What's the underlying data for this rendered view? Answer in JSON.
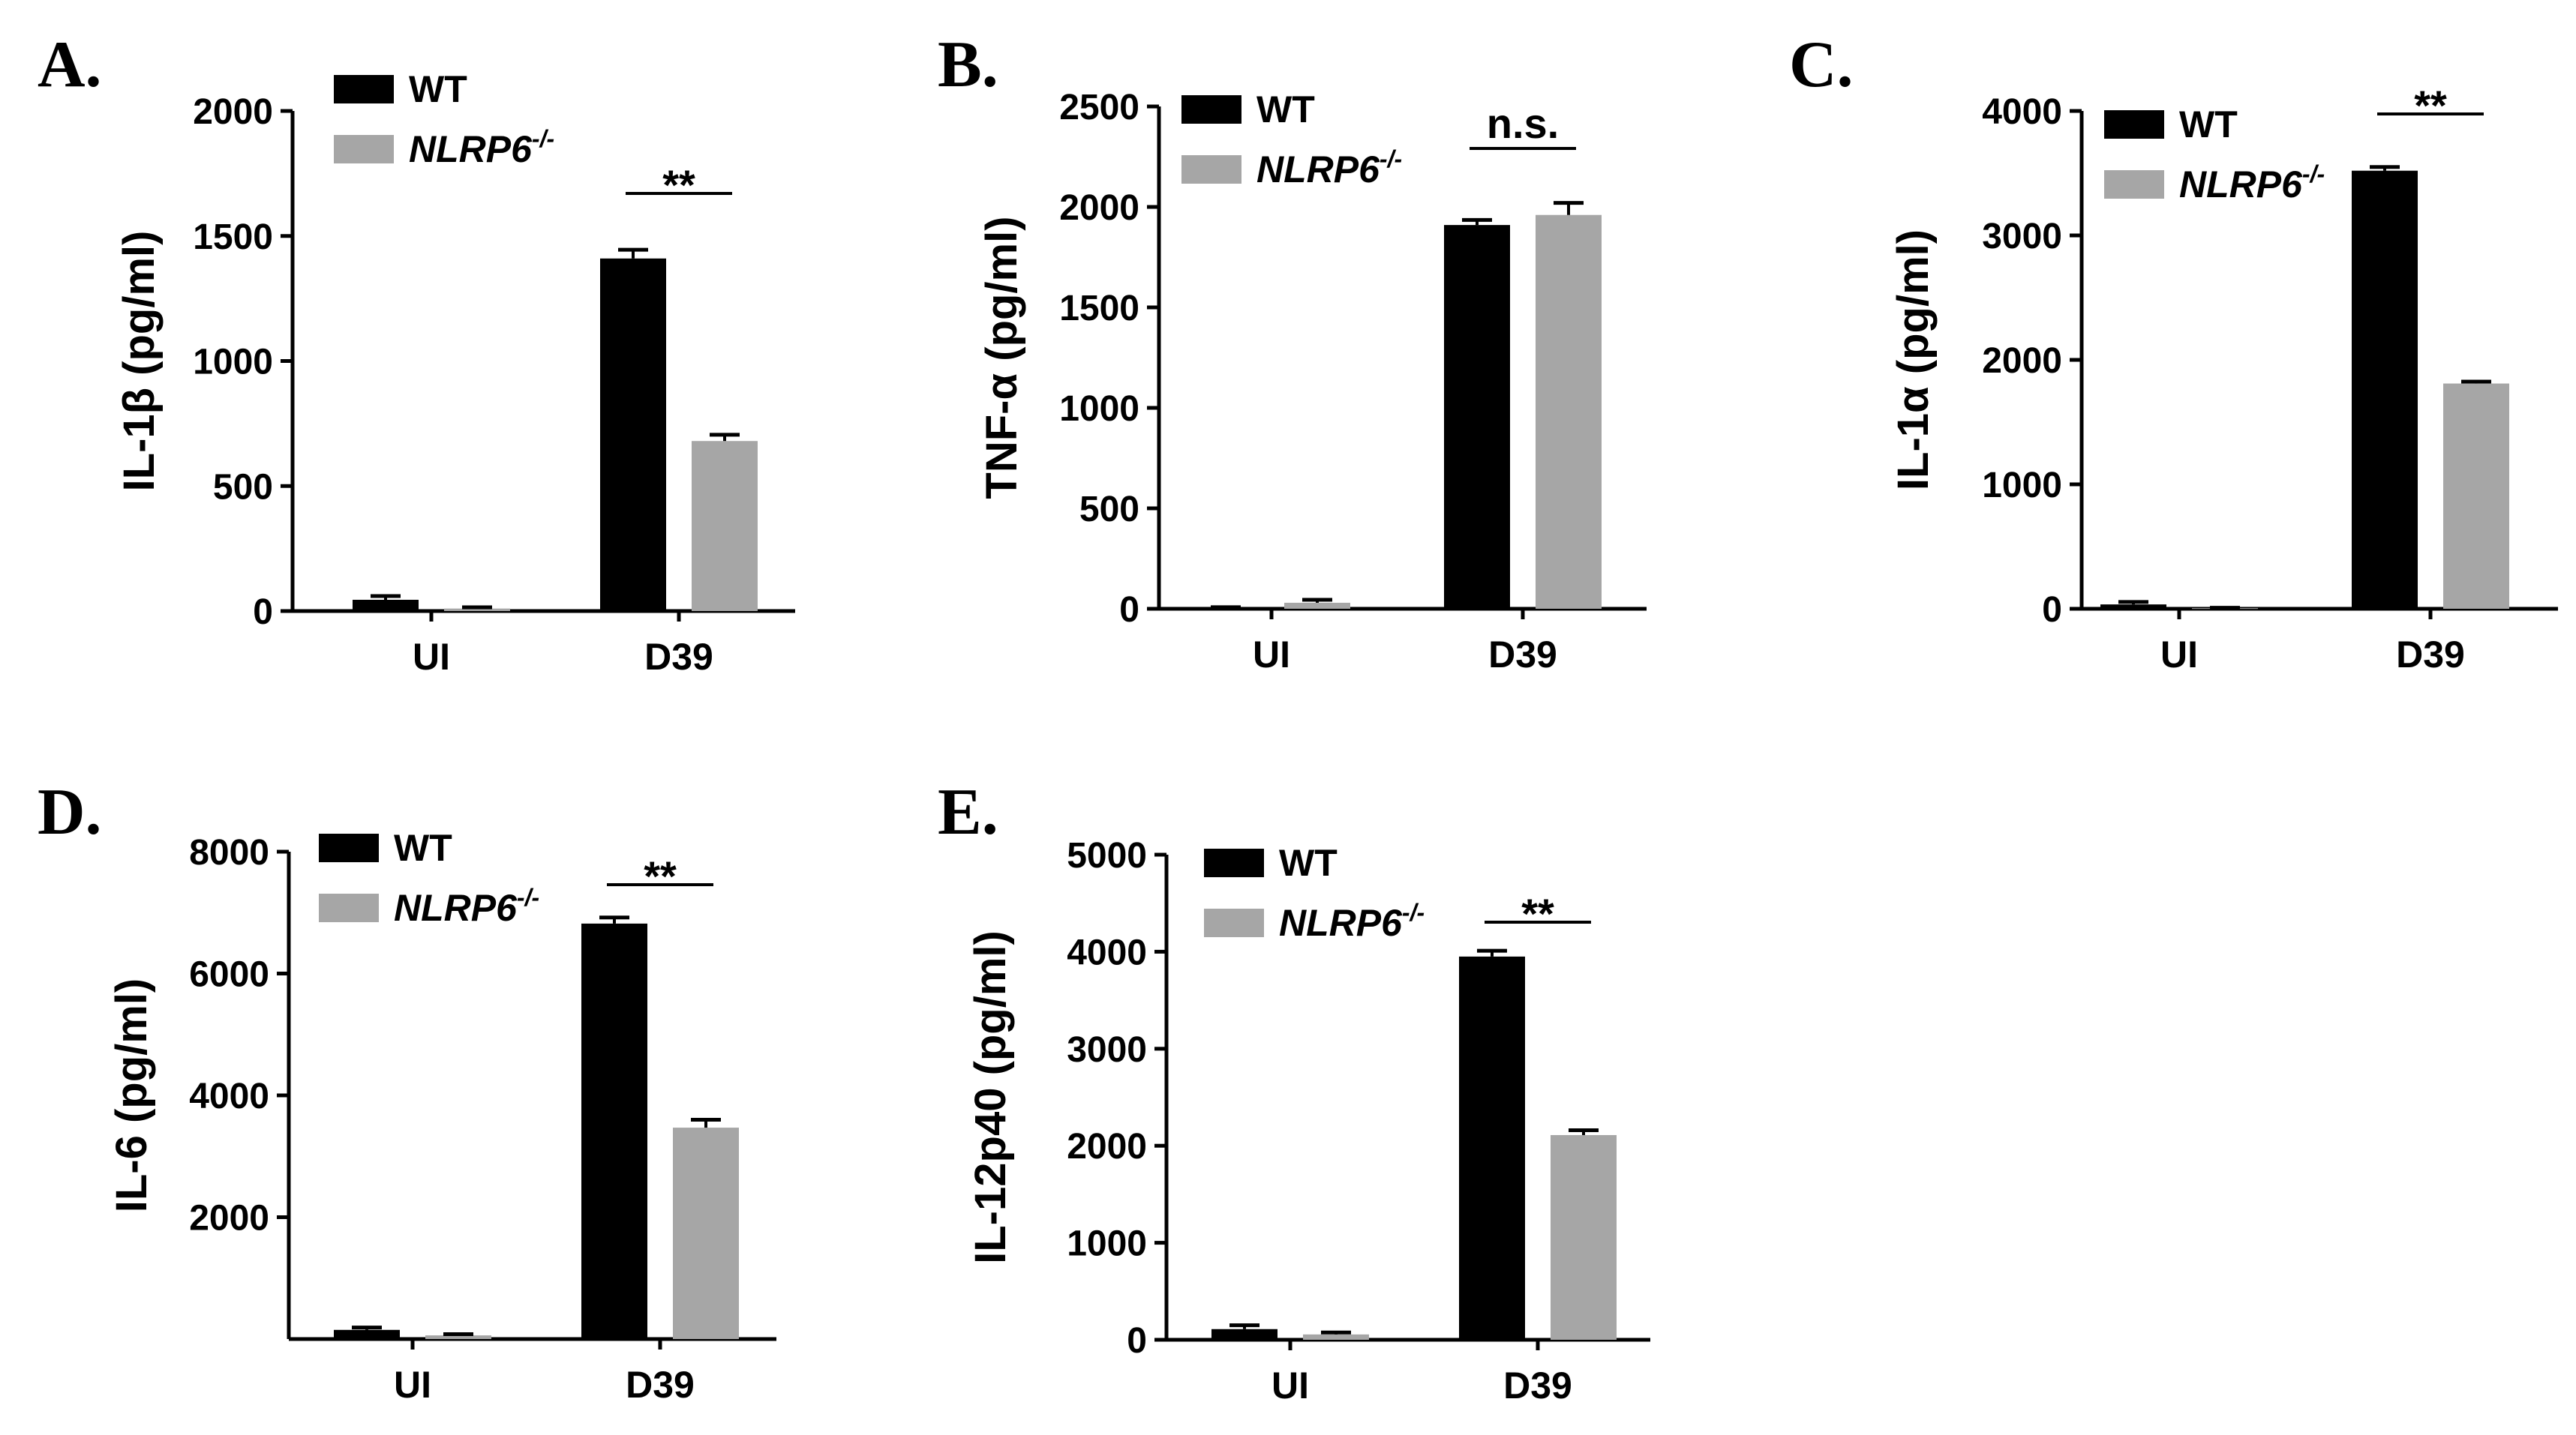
{
  "colors": {
    "WT": "#000000",
    "NLRP6": "#a6a6a6"
  },
  "chart_data": [
    {
      "panel": "A.",
      "type": "bar",
      "ylabel": "IL-1β (pg/ml)",
      "categories": [
        "UI",
        "D39"
      ],
      "ylim": [
        0,
        2000
      ],
      "yticks": [
        "0",
        "500",
        "1000",
        "1500",
        "2000"
      ],
      "yticks_values": [
        0,
        500,
        1000,
        1500,
        2000
      ],
      "series": [
        {
          "name": "WT",
          "values": [
            45,
            1410
          ],
          "errors": [
            15,
            35
          ]
        },
        {
          "name": "NLRP6",
          "values": [
            10,
            680
          ],
          "errors": [
            5,
            25
          ]
        }
      ],
      "legend": {
        "wt": "WT",
        "ko_base": "NLRP6",
        "ko_sup": "-/-"
      },
      "significance": [
        {
          "category": "D39",
          "label": "**"
        }
      ]
    },
    {
      "panel": "B.",
      "type": "bar",
      "ylabel": "TNF-α (pg/ml)",
      "categories": [
        "UI",
        "D39"
      ],
      "ylim": [
        0,
        2500
      ],
      "yticks": [
        "0",
        "500",
        "1000",
        "1500",
        "2000",
        "2500"
      ],
      "yticks_values": [
        0,
        500,
        1000,
        1500,
        2000,
        2500
      ],
      "series": [
        {
          "name": "WT",
          "values": [
            5,
            1910
          ],
          "errors": [
            3,
            25
          ]
        },
        {
          "name": "NLRP6",
          "values": [
            30,
            1960
          ],
          "errors": [
            15,
            60
          ]
        }
      ],
      "legend": {
        "wt": "WT",
        "ko_base": "NLRP6",
        "ko_sup": "-/-"
      },
      "significance": [
        {
          "category": "D39",
          "label": "n.s."
        }
      ]
    },
    {
      "panel": "C.",
      "type": "bar",
      "ylabel": "IL-1α (pg/ml)",
      "categories": [
        "UI",
        "D39"
      ],
      "ylim": [
        0,
        4000
      ],
      "yticks": [
        "0",
        "1000",
        "2000",
        "3000",
        "4000"
      ],
      "yticks_values": [
        0,
        1000,
        2000,
        3000,
        4000
      ],
      "series": [
        {
          "name": "WT",
          "values": [
            35,
            3520
          ],
          "errors": [
            20,
            30
          ]
        },
        {
          "name": "NLRP6",
          "values": [
            5,
            1810
          ],
          "errors": [
            3,
            15
          ]
        }
      ],
      "legend": {
        "wt": "WT",
        "ko_base": "NLRP6",
        "ko_sup": "-/-"
      },
      "significance": [
        {
          "category": "D39",
          "label": "**"
        }
      ]
    },
    {
      "panel": "D.",
      "type": "bar",
      "ylabel": "IL-6 (pg/ml)",
      "categories": [
        "UI",
        "D39"
      ],
      "ylim": [
        0,
        8000
      ],
      "yticks": [
        "2000",
        "4000",
        "6000",
        "8000"
      ],
      "yticks_values": [
        2000,
        4000,
        6000,
        8000
      ],
      "series": [
        {
          "name": "WT",
          "values": [
            150,
            6820
          ],
          "errors": [
            40,
            100
          ]
        },
        {
          "name": "NLRP6",
          "values": [
            60,
            3470
          ],
          "errors": [
            20,
            130
          ]
        }
      ],
      "legend": {
        "wt": "WT",
        "ko_base": "NLRP6",
        "ko_sup": "-/-"
      },
      "significance": [
        {
          "category": "D39",
          "label": "**"
        }
      ]
    },
    {
      "panel": "E.",
      "type": "bar",
      "ylabel": "IL-12p40 (pg/ml)",
      "categories": [
        "UI",
        "D39"
      ],
      "ylim": [
        0,
        5000
      ],
      "yticks": [
        "0",
        "1000",
        "2000",
        "3000",
        "4000",
        "5000"
      ],
      "yticks_values": [
        0,
        1000,
        2000,
        3000,
        4000,
        5000
      ],
      "series": [
        {
          "name": "WT",
          "values": [
            110,
            3950
          ],
          "errors": [
            40,
            60
          ]
        },
        {
          "name": "NLRP6",
          "values": [
            55,
            2110
          ],
          "errors": [
            20,
            50
          ]
        }
      ],
      "legend": {
        "wt": "WT",
        "ko_base": "NLRP6",
        "ko_sup": "-/-"
      },
      "significance": [
        {
          "category": "D39",
          "label": "**"
        }
      ]
    }
  ]
}
